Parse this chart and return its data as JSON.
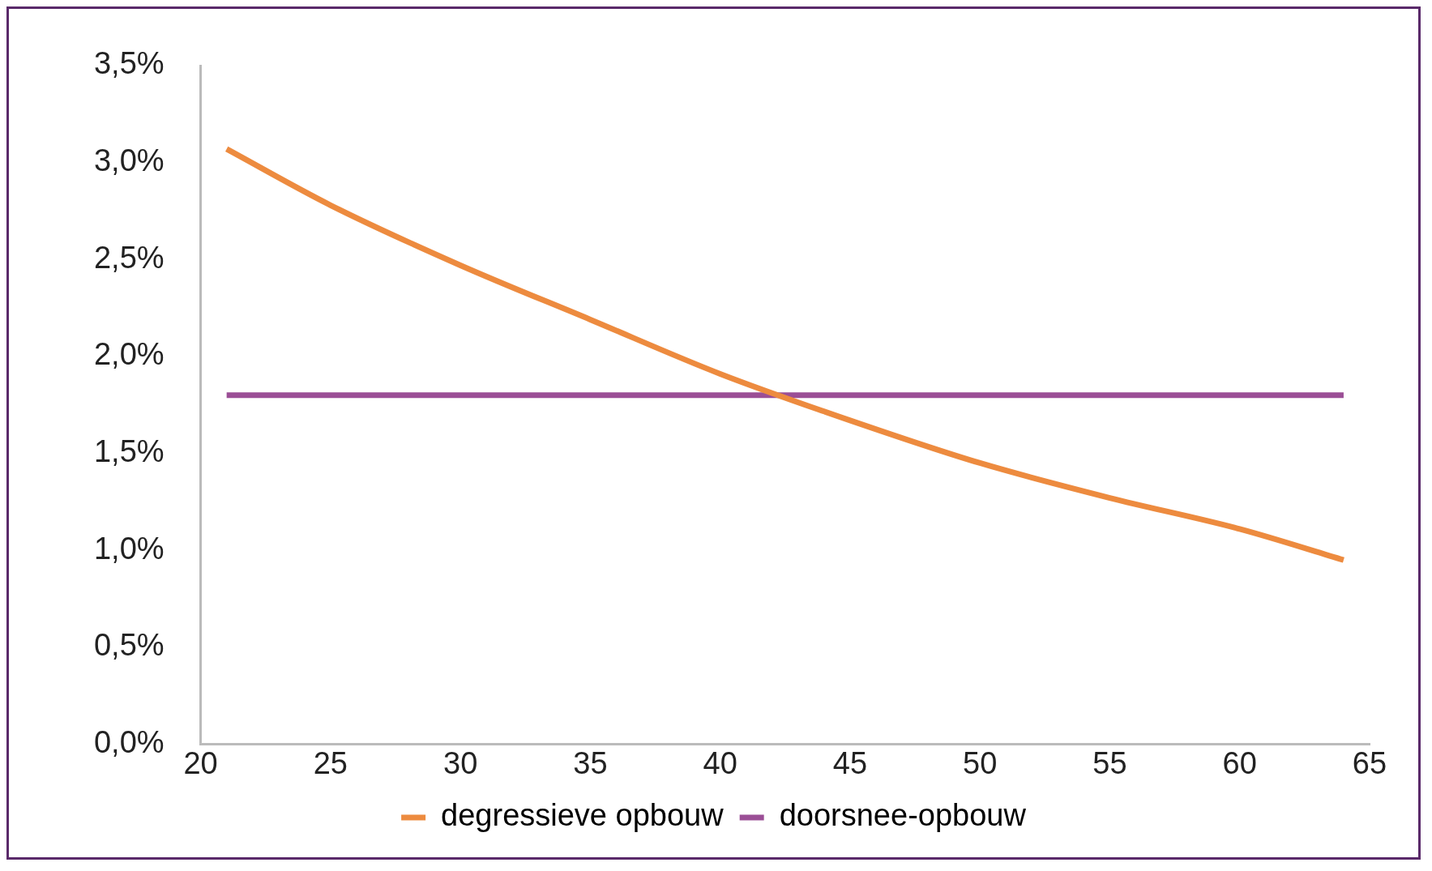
{
  "chart_data": {
    "type": "line",
    "series": [
      {
        "name": "degressieve opbouw",
        "color": "#ed8b3f",
        "x": [
          21,
          25,
          30,
          35,
          40,
          45,
          50,
          55,
          60,
          64
        ],
        "values": [
          3.07,
          2.78,
          2.47,
          2.19,
          1.91,
          1.67,
          1.45,
          1.27,
          1.11,
          0.95
        ]
      },
      {
        "name": "doorsnee-opbouw",
        "color": "#9b4f96",
        "x": [
          21,
          64
        ],
        "values": [
          1.8,
          1.8
        ]
      }
    ],
    "xlim": [
      20,
      65
    ],
    "xticks": [
      20,
      25,
      30,
      35,
      40,
      45,
      50,
      55,
      60,
      65
    ],
    "ylim": [
      0,
      3.5
    ],
    "yticks": [
      {
        "value": 0,
        "label": "0,0%"
      },
      {
        "value": 0.5,
        "label": "0,5%"
      },
      {
        "value": 1,
        "label": "1,0%"
      },
      {
        "value": 1.5,
        "label": "1,5%"
      },
      {
        "value": 2,
        "label": "2,0%"
      },
      {
        "value": 2.5,
        "label": "2,5%"
      },
      {
        "value": 3,
        "label": "3,0%"
      },
      {
        "value": 3.5,
        "label": "3,5%"
      }
    ],
    "grid": false,
    "legend": "bottom",
    "marker": "none",
    "line_style": "solid"
  }
}
